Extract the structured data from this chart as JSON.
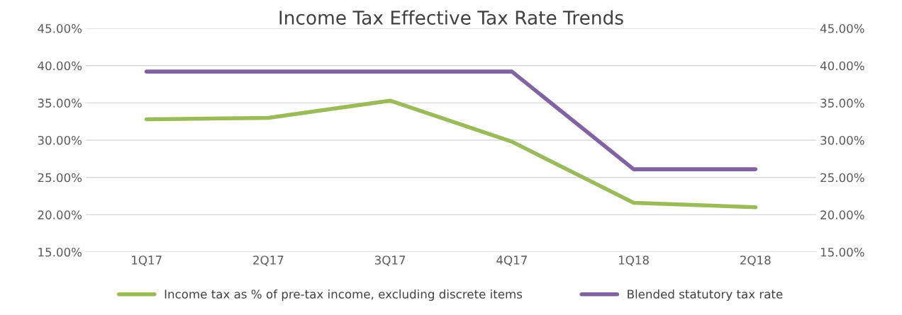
{
  "chart_data": {
    "type": "line",
    "title": "Income Tax Effective Tax Rate Trends",
    "categories": [
      "1Q17",
      "2Q17",
      "3Q17",
      "4Q17",
      "1Q18",
      "2Q18"
    ],
    "series": [
      {
        "name": "Income tax as % of pre-tax income, excluding discrete items",
        "color": "#9bbb59",
        "values": [
          32.8,
          33.0,
          35.3,
          29.8,
          21.6,
          21.0
        ]
      },
      {
        "name": "Blended statutory tax rate",
        "color": "#8064a2",
        "values": [
          39.2,
          39.2,
          39.2,
          39.2,
          26.1,
          26.1
        ]
      }
    ],
    "ylim": [
      15,
      45
    ],
    "yticks": [
      {
        "value": 15,
        "label": "15.00%"
      },
      {
        "value": 20,
        "label": "20.00%"
      },
      {
        "value": 25,
        "label": "25.00%"
      },
      {
        "value": 30,
        "label": "30.00%"
      },
      {
        "value": 35,
        "label": "35.00%"
      },
      {
        "value": 40,
        "label": "40.00%"
      },
      {
        "value": 45,
        "label": "45.00%"
      }
    ],
    "y2lim": [
      15,
      45
    ],
    "y2ticks": [
      {
        "value": 15,
        "label": "15.00%"
      },
      {
        "value": 20,
        "label": "20.00%"
      },
      {
        "value": 25,
        "label": "25.00%"
      },
      {
        "value": 30,
        "label": "30.00%"
      },
      {
        "value": 35,
        "label": "35.00%"
      },
      {
        "value": 40,
        "label": "40.00%"
      },
      {
        "value": 45,
        "label": "45.00%"
      }
    ],
    "grid": "y",
    "legend": "bottom",
    "marker": "none",
    "line_style": "solid"
  }
}
